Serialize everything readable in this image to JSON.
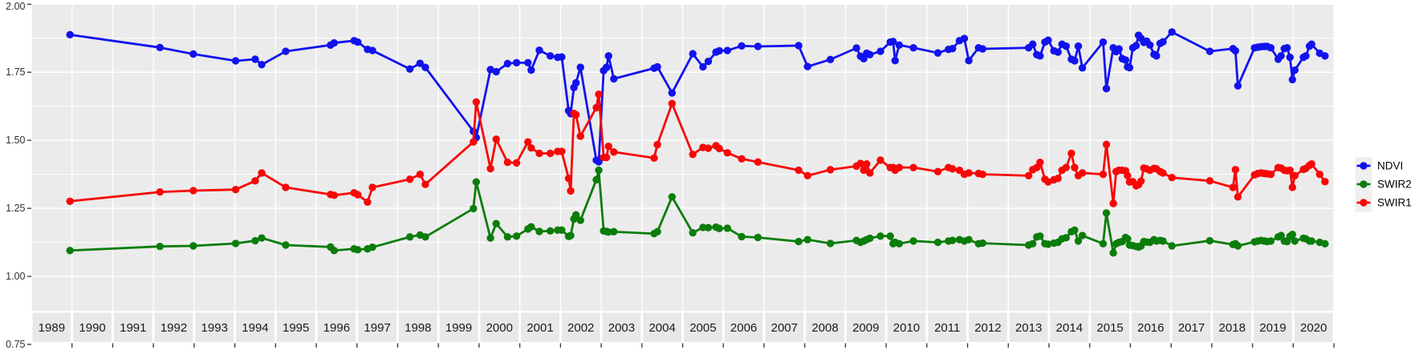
{
  "figure": {
    "background": "#ffffff",
    "panel_color": "#ebebeb",
    "grid_color": "#ffffff",
    "strip_color": "#e8e8e8",
    "tick_color": "#333333",
    "axis_label_color": "#303030",
    "strip_text_color": "#1a1a1a"
  },
  "chart_data": {
    "type": "line",
    "title": "",
    "xlabel": "",
    "ylabel": "",
    "grid": true,
    "legend_position": "right",
    "x_axis": {
      "facet_years": [
        "1989",
        "1990",
        "1991",
        "1992",
        "1993",
        "1994",
        "1995",
        "1996",
        "1997",
        "1998",
        "1999",
        "2000",
        "2001",
        "2002",
        "2003",
        "2004",
        "2005",
        "2006",
        "2007",
        "2008",
        "2009",
        "2010",
        "2011",
        "2012",
        "2013",
        "2014",
        "2015",
        "2016",
        "2017",
        "2018",
        "2019",
        "2020"
      ],
      "range": [
        1989,
        2021
      ]
    },
    "y_axis": {
      "tick_labels": [
        "0.75",
        "1.00",
        "1.25",
        "1.50",
        "1.75",
        "2.00"
      ],
      "tick_values": [
        0.75,
        1.0,
        1.25,
        1.5,
        1.75,
        2.0
      ],
      "minor_values": [
        1.875,
        1.625,
        1.375,
        1.125
      ],
      "range": [
        0.75,
        2.0
      ]
    },
    "x": [
      1989.95,
      1992.16,
      1992.98,
      1994.02,
      1994.5,
      1994.66,
      1995.25,
      1996.35,
      1996.44,
      1996.93,
      1997.02,
      1997.26,
      1997.38,
      1998.3,
      1998.55,
      1998.68,
      1999.86,
      1999.93,
      2000.28,
      2000.42,
      2000.7,
      2000.92,
      2001.2,
      2001.28,
      2001.48,
      2001.75,
      2001.93,
      2002.03,
      2002.2,
      2002.25,
      2002.33,
      2002.38,
      2002.49,
      2002.88,
      2002.94,
      2003.06,
      2003.13,
      2003.18,
      2003.31,
      2004.3,
      2004.38,
      2004.74,
      2005.25,
      2005.5,
      2005.63,
      2005.82,
      2005.9,
      2006.1,
      2006.45,
      2006.85,
      2007.85,
      2008.07,
      2008.63,
      2009.27,
      2009.37,
      2009.45,
      2009.52,
      2009.6,
      2009.86,
      2010.1,
      2010.17,
      2010.22,
      2010.32,
      2010.67,
      2011.27,
      2011.53,
      2011.63,
      2011.8,
      2011.92,
      2012.03,
      2012.27,
      2012.37,
      2013.5,
      2013.6,
      2013.7,
      2013.78,
      2013.9,
      2013.98,
      2014.12,
      2014.22,
      2014.32,
      2014.42,
      2014.55,
      2014.63,
      2014.72,
      2014.82,
      2015.33,
      2015.41,
      2015.58,
      2015.65,
      2015.72,
      2015.8,
      2015.88,
      2015.93,
      2015.98,
      2016.06,
      2016.14,
      2016.2,
      2016.26,
      2016.33,
      2016.4,
      2016.48,
      2016.58,
      2016.64,
      2016.73,
      2016.8,
      2017.02,
      2017.95,
      2018.52,
      2018.58,
      2018.64,
      2019.05,
      2019.13,
      2019.21,
      2019.29,
      2019.36,
      2019.45,
      2019.63,
      2019.7,
      2019.78,
      2019.85,
      2019.92,
      2019.98,
      2020.04,
      2020.25,
      2020.31,
      2020.4,
      2020.45,
      2020.65,
      2020.78
    ],
    "series": [
      {
        "name": "NDVI",
        "color": "#1212ef",
        "values": [
          1.888,
          1.841,
          1.817,
          1.792,
          1.798,
          1.778,
          1.827,
          1.85,
          1.858,
          1.866,
          1.861,
          1.834,
          1.83,
          1.762,
          1.783,
          1.768,
          1.533,
          1.51,
          1.76,
          1.752,
          1.782,
          1.785,
          1.785,
          1.758,
          1.831,
          1.81,
          1.805,
          1.806,
          1.609,
          1.598,
          1.694,
          1.711,
          1.768,
          1.427,
          1.421,
          1.756,
          1.768,
          1.81,
          1.726,
          1.765,
          1.77,
          1.674,
          1.818,
          1.77,
          1.79,
          1.824,
          1.829,
          1.83,
          1.847,
          1.845,
          1.848,
          1.771,
          1.797,
          1.839,
          1.809,
          1.8,
          1.82,
          1.815,
          1.827,
          1.861,
          1.863,
          1.793,
          1.85,
          1.84,
          1.821,
          1.834,
          1.837,
          1.866,
          1.874,
          1.793,
          1.84,
          1.836,
          1.84,
          1.853,
          1.815,
          1.81,
          1.861,
          1.868,
          1.829,
          1.824,
          1.853,
          1.846,
          1.798,
          1.792,
          1.846,
          1.766,
          1.861,
          1.69,
          1.84,
          1.826,
          1.836,
          1.8,
          1.795,
          1.77,
          1.767,
          1.84,
          1.848,
          1.886,
          1.875,
          1.86,
          1.864,
          1.85,
          1.816,
          1.81,
          1.856,
          1.862,
          1.898,
          1.827,
          1.837,
          1.829,
          1.7,
          1.84,
          1.842,
          1.844,
          1.845,
          1.845,
          1.84,
          1.798,
          1.81,
          1.837,
          1.84,
          1.805,
          1.723,
          1.758,
          1.805,
          1.81,
          1.846,
          1.853,
          1.82,
          1.81
        ]
      },
      {
        "name": "SWIR2",
        "color": "#0b7d0b",
        "values": [
          1.095,
          1.11,
          1.112,
          1.121,
          1.131,
          1.141,
          1.115,
          1.108,
          1.095,
          1.101,
          1.098,
          1.101,
          1.107,
          1.145,
          1.152,
          1.145,
          1.249,
          1.347,
          1.141,
          1.194,
          1.145,
          1.148,
          1.174,
          1.182,
          1.165,
          1.167,
          1.17,
          1.17,
          1.147,
          1.15,
          1.211,
          1.226,
          1.206,
          1.355,
          1.39,
          1.167,
          1.165,
          1.163,
          1.164,
          1.157,
          1.164,
          1.292,
          1.16,
          1.18,
          1.179,
          1.181,
          1.176,
          1.177,
          1.146,
          1.143,
          1.128,
          1.135,
          1.121,
          1.132,
          1.125,
          1.13,
          1.135,
          1.14,
          1.148,
          1.148,
          1.12,
          1.125,
          1.12,
          1.13,
          1.125,
          1.13,
          1.132,
          1.135,
          1.13,
          1.135,
          1.12,
          1.122,
          1.115,
          1.12,
          1.145,
          1.148,
          1.12,
          1.118,
          1.122,
          1.125,
          1.138,
          1.142,
          1.164,
          1.17,
          1.13,
          1.15,
          1.12,
          1.233,
          1.086,
          1.12,
          1.125,
          1.128,
          1.143,
          1.138,
          1.115,
          1.113,
          1.11,
          1.108,
          1.112,
          1.128,
          1.126,
          1.125,
          1.135,
          1.13,
          1.132,
          1.13,
          1.112,
          1.131,
          1.117,
          1.12,
          1.112,
          1.127,
          1.13,
          1.132,
          1.13,
          1.128,
          1.13,
          1.145,
          1.15,
          1.13,
          1.128,
          1.147,
          1.154,
          1.13,
          1.14,
          1.138,
          1.13,
          1.13,
          1.125,
          1.12
        ]
      },
      {
        "name": "SWIR1",
        "color": "#f80707",
        "values": [
          1.276,
          1.31,
          1.315,
          1.319,
          1.351,
          1.38,
          1.327,
          1.301,
          1.298,
          1.307,
          1.3,
          1.273,
          1.327,
          1.357,
          1.375,
          1.338,
          1.494,
          1.641,
          1.396,
          1.504,
          1.419,
          1.417,
          1.494,
          1.472,
          1.452,
          1.452,
          1.459,
          1.459,
          1.36,
          1.314,
          1.599,
          1.594,
          1.515,
          1.62,
          1.669,
          1.437,
          1.437,
          1.478,
          1.457,
          1.435,
          1.484,
          1.635,
          1.448,
          1.474,
          1.471,
          1.48,
          1.47,
          1.454,
          1.432,
          1.42,
          1.39,
          1.37,
          1.392,
          1.405,
          1.415,
          1.39,
          1.413,
          1.38,
          1.427,
          1.4,
          1.4,
          1.39,
          1.4,
          1.4,
          1.385,
          1.4,
          1.395,
          1.39,
          1.375,
          1.38,
          1.378,
          1.375,
          1.37,
          1.392,
          1.4,
          1.419,
          1.357,
          1.347,
          1.355,
          1.36,
          1.39,
          1.4,
          1.452,
          1.4,
          1.37,
          1.38,
          1.375,
          1.485,
          1.268,
          1.385,
          1.39,
          1.39,
          1.388,
          1.37,
          1.347,
          1.348,
          1.333,
          1.337,
          1.35,
          1.398,
          1.395,
          1.39,
          1.397,
          1.395,
          1.385,
          1.38,
          1.363,
          1.351,
          1.327,
          1.392,
          1.292,
          1.373,
          1.378,
          1.38,
          1.378,
          1.377,
          1.375,
          1.4,
          1.398,
          1.39,
          1.388,
          1.39,
          1.327,
          1.37,
          1.393,
          1.397,
          1.408,
          1.413,
          1.375,
          1.348
        ]
      }
    ],
    "legend": {
      "entries": [
        {
          "label": "NDVI",
          "color": "#1212ef"
        },
        {
          "label": "SWIR2",
          "color": "#0b7d0b"
        },
        {
          "label": "SWIR1",
          "color": "#f80707"
        }
      ]
    }
  }
}
